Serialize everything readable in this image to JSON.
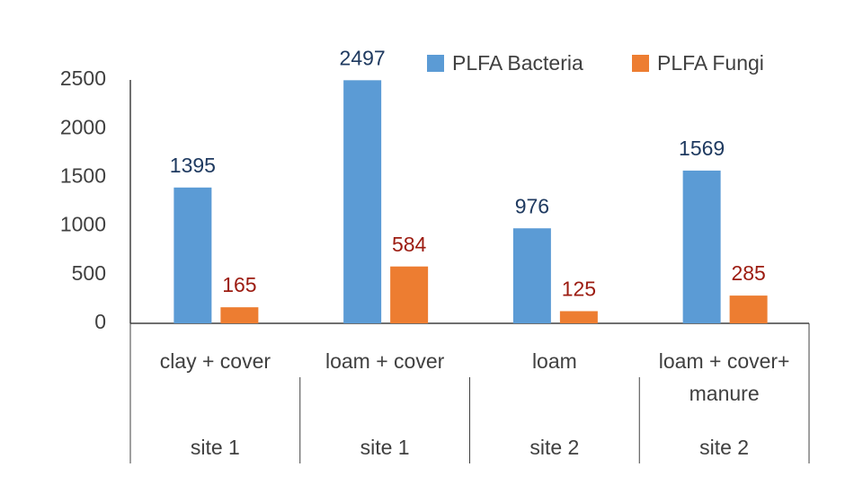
{
  "chart_data": {
    "type": "bar",
    "categories": [
      "clay + cover",
      "loam + cover",
      "loam",
      "loam + cover+ manure"
    ],
    "category_groups": [
      "site 1",
      "site 1",
      "site 2",
      "site 2"
    ],
    "series": [
      {
        "name": "PLFA Bacteria",
        "color": "#5b9bd5",
        "label_color": "#1f3a60",
        "values": [
          1395,
          2497,
          976,
          1569
        ]
      },
      {
        "name": "PLFA Fungi",
        "color": "#ed7d31",
        "label_color": "#9c1b10",
        "values": [
          165,
          584,
          125,
          285
        ]
      }
    ],
    "ylim": [
      0,
      2500
    ],
    "yticks": [
      0,
      500,
      1000,
      1500,
      2000,
      2500
    ],
    "grid": false
  }
}
